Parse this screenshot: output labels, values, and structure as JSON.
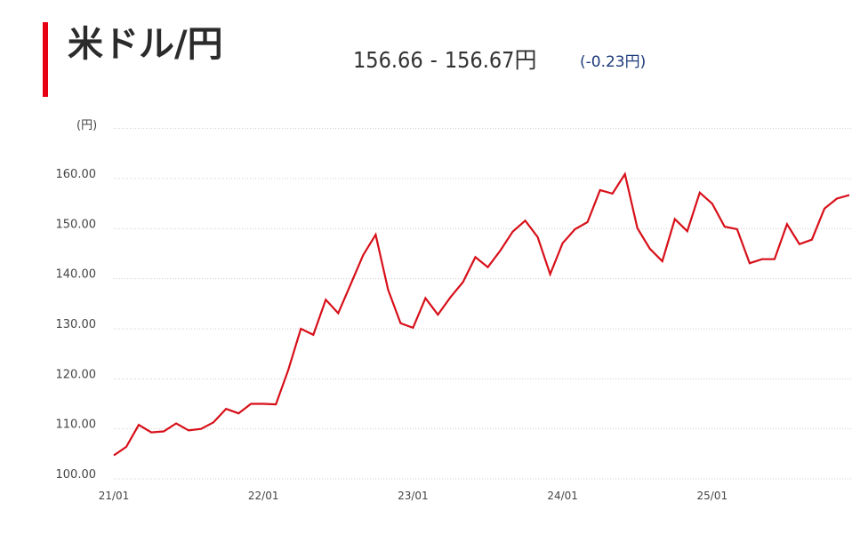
{
  "header": {
    "title": "米ドル/円",
    "bid": "156.66",
    "separator": "-",
    "ask": "156.67円",
    "change": "(-0.23円)"
  },
  "colors": {
    "accent": "#e60012",
    "line": "#d70f19",
    "grid": "#cccccc",
    "change_text": "#1b3a7a"
  },
  "chart_data": {
    "type": "line",
    "title": "米ドル/円",
    "ylabel": "(円)",
    "ylim": [
      100,
      170
    ],
    "y_ticks": [
      "100.00",
      "110.00",
      "120.00",
      "130.00",
      "140.00",
      "150.00",
      "160.00"
    ],
    "y_tick_values": [
      100,
      110,
      120,
      130,
      140,
      150,
      160
    ],
    "x_ticks": [
      "21/01",
      "22/01",
      "23/01",
      "24/01",
      "25/01"
    ],
    "x_tick_index": [
      0,
      12,
      24,
      36,
      48
    ],
    "grid": true,
    "series": [
      {
        "values": [
          104.7,
          106.4,
          110.8,
          109.3,
          109.5,
          111.1,
          109.7,
          110.0,
          111.3,
          114.0,
          113.1,
          115.0,
          115.0,
          114.9,
          121.8,
          130.0,
          128.8,
          135.8,
          133.1,
          138.9,
          144.7,
          148.8,
          137.8,
          131.1,
          130.2,
          136.1,
          132.8,
          136.3,
          139.3,
          144.3,
          142.3,
          145.6,
          149.4,
          151.6,
          148.3,
          140.9,
          147.1,
          149.9,
          151.3,
          157.7,
          157.0,
          160.9,
          150.1,
          146.0,
          143.5,
          151.9,
          149.5,
          157.2,
          155.0,
          150.4,
          149.9,
          143.1,
          143.9,
          143.9,
          150.9,
          146.9,
          147.8,
          154.0,
          156.0,
          156.7
        ]
      }
    ]
  }
}
